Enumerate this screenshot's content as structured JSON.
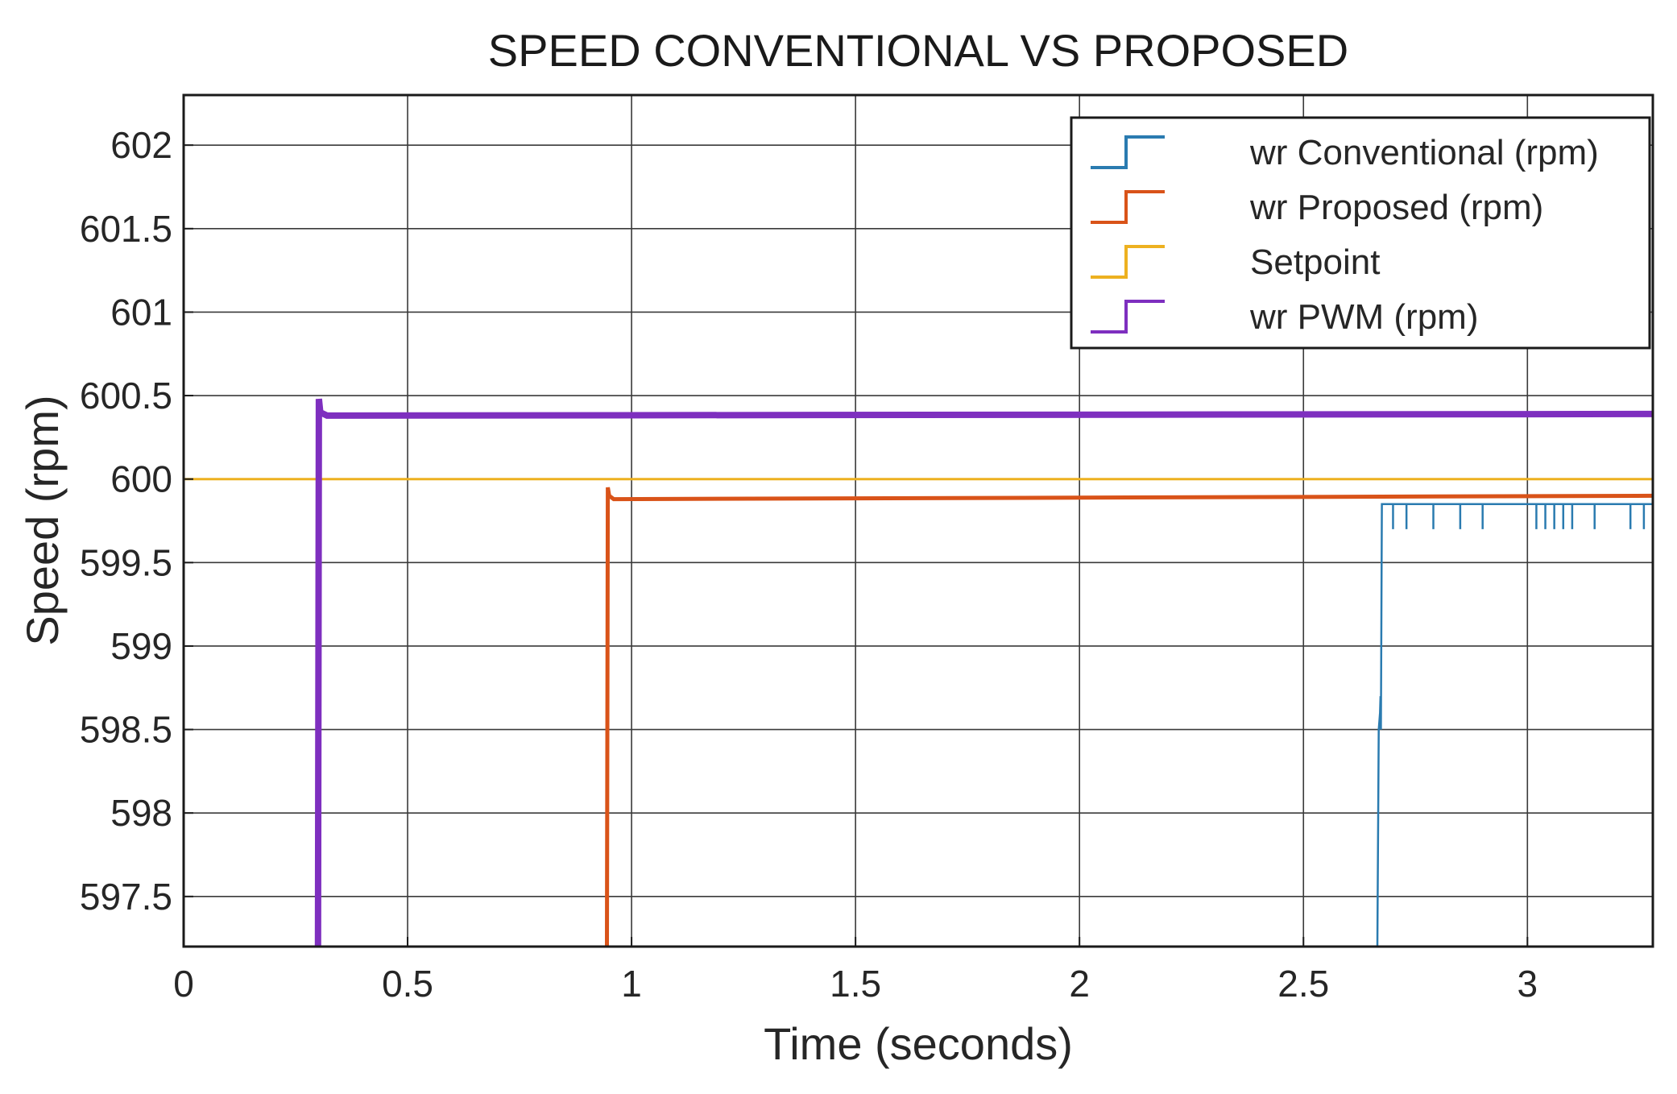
{
  "chart_data": {
    "type": "line",
    "title": "SPEED CONVENTIONAL VS PROPOSED",
    "xlabel": "Time (seconds)",
    "ylabel": "Speed (rpm)",
    "xlim": [
      0,
      3.28
    ],
    "ylim": [
      597.2,
      602.3
    ],
    "xticks": [
      0,
      0.5,
      1,
      1.5,
      2,
      2.5,
      3
    ],
    "xtick_labels": [
      "0",
      "0.5",
      "1",
      "1.5",
      "2",
      "2.5",
      "3"
    ],
    "yticks": [
      597.5,
      598,
      598.5,
      599,
      599.5,
      600,
      600.5,
      601,
      601.5,
      602
    ],
    "ytick_labels": [
      "597.5",
      "598",
      "598.5",
      "599",
      "599.5",
      "600",
      "600.5",
      "601",
      "601.5",
      "602"
    ],
    "grid": true,
    "legend_position": "top-right",
    "series": [
      {
        "name": "wr  Conventional (rpm)",
        "color": "#2a7bb0",
        "x": [
          2.665,
          2.668,
          2.671,
          2.672,
          2.673,
          2.675,
          2.68,
          3.28
        ],
        "y": [
          597.2,
          598.5,
          598.6,
          598.7,
          598.5,
          599.85,
          599.85,
          599.85
        ],
        "dips_x": [
          2.7,
          2.73,
          2.79,
          2.85,
          2.9,
          3.02,
          3.04,
          3.06,
          3.08,
          3.1,
          3.15,
          3.23,
          3.26
        ],
        "dips_y": 599.7
      },
      {
        "name": "wr  Proposed (rpm)",
        "color": "#d95319",
        "x": [
          0.945,
          0.947,
          0.95,
          0.96,
          3.28
        ],
        "y": [
          597.2,
          599.95,
          599.9,
          599.88,
          599.9
        ]
      },
      {
        "name": "Setpoint",
        "color": "#edb120",
        "x": [
          0,
          3.28
        ],
        "y": [
          600,
          600
        ]
      },
      {
        "name": "wr  PWM (rpm)",
        "color": "#7e2fbf",
        "x": [
          0.3,
          0.302,
          0.305,
          0.32,
          3.28
        ],
        "y": [
          597.2,
          600.48,
          600.4,
          600.38,
          600.39
        ]
      }
    ]
  }
}
